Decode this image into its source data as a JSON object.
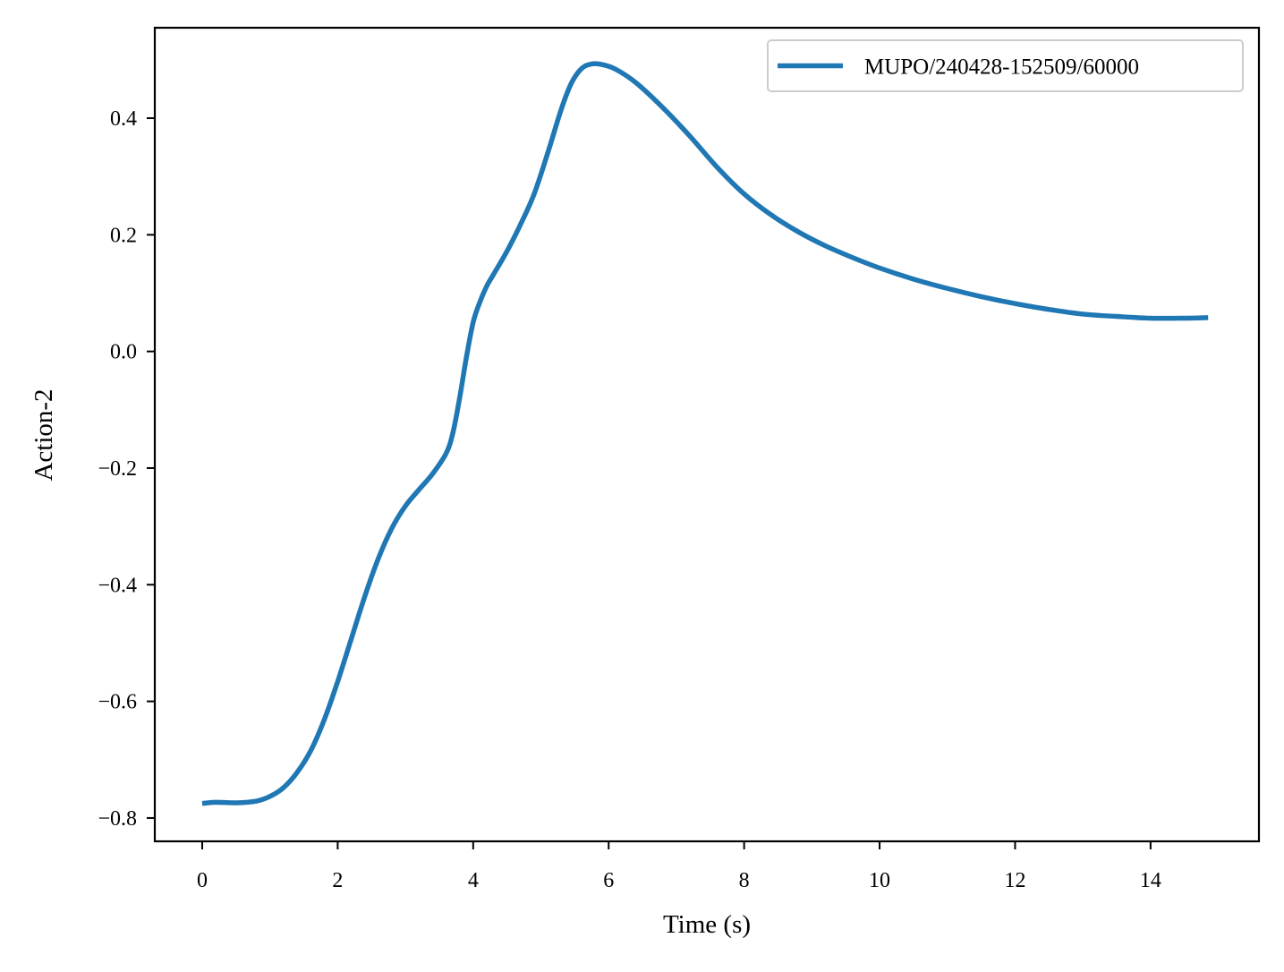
{
  "chart_data": {
    "type": "line",
    "title": "",
    "xlabel": "Time (s)",
    "ylabel": "Action-2",
    "xlim": [
      -0.7,
      15.6
    ],
    "ylim": [
      -0.84,
      0.555
    ],
    "xticks": [
      0,
      2,
      4,
      6,
      8,
      10,
      12,
      14
    ],
    "xtick_labels": [
      "0",
      "2",
      "4",
      "6",
      "8",
      "10",
      "12",
      "14"
    ],
    "yticks": [
      -0.8,
      -0.6,
      -0.4,
      -0.2,
      0.0,
      0.2,
      0.4
    ],
    "ytick_labels": [
      "−0.8",
      "−0.6",
      "−0.4",
      "−0.2",
      "0.0",
      "0.2",
      "0.4"
    ],
    "grid": false,
    "legend_position": "top-right",
    "series": [
      {
        "name": "MUPO/240428-152509/60000",
        "color": "#1f77b4",
        "x": [
          0.0,
          0.2,
          0.5,
          0.8,
          1.0,
          1.2,
          1.4,
          1.6,
          1.8,
          2.0,
          2.2,
          2.4,
          2.6,
          2.8,
          3.0,
          3.2,
          3.4,
          3.6,
          3.7,
          3.8,
          3.9,
          4.0,
          4.1,
          4.2,
          4.3,
          4.5,
          4.7,
          4.9,
          5.1,
          5.3,
          5.45,
          5.6,
          5.75,
          5.9,
          6.1,
          6.4,
          6.8,
          7.2,
          7.6,
          8.0,
          8.4,
          8.8,
          9.2,
          9.6,
          10.0,
          10.5,
          11.0,
          11.5,
          12.0,
          12.5,
          13.0,
          13.5,
          14.0,
          14.5,
          14.85
        ],
        "y": [
          -0.775,
          -0.773,
          -0.774,
          -0.771,
          -0.763,
          -0.748,
          -0.722,
          -0.685,
          -0.632,
          -0.566,
          -0.493,
          -0.42,
          -0.355,
          -0.303,
          -0.265,
          -0.237,
          -0.21,
          -0.175,
          -0.14,
          -0.08,
          -0.01,
          0.05,
          0.085,
          0.112,
          0.132,
          0.172,
          0.218,
          0.27,
          0.34,
          0.415,
          0.46,
          0.485,
          0.493,
          0.492,
          0.484,
          0.461,
          0.418,
          0.369,
          0.316,
          0.27,
          0.234,
          0.205,
          0.181,
          0.161,
          0.143,
          0.124,
          0.108,
          0.094,
          0.082,
          0.072,
          0.064,
          0.06,
          0.057,
          0.057,
          0.058
        ]
      }
    ]
  }
}
